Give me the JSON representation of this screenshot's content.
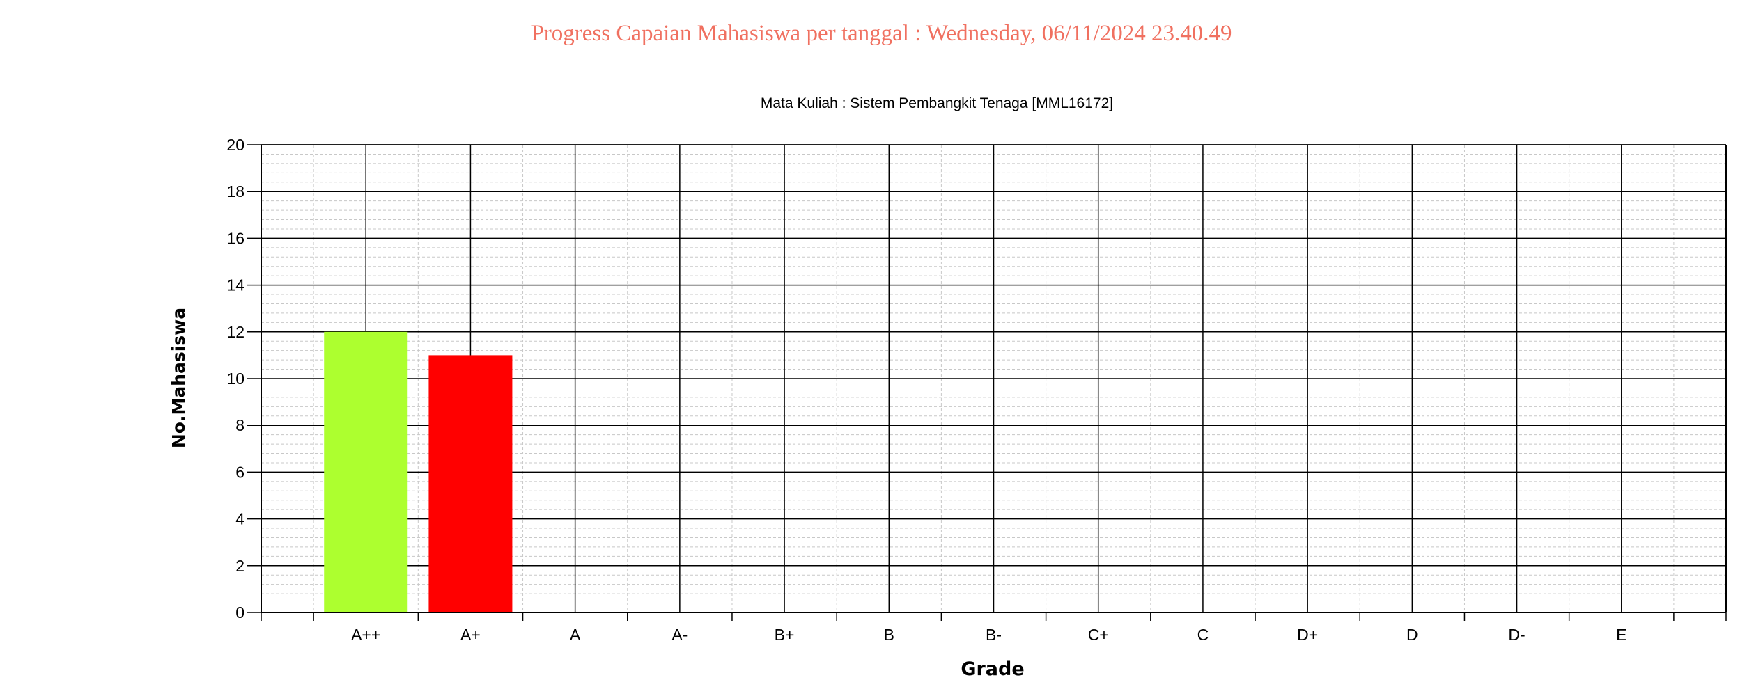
{
  "page": {
    "title": "Progress Capaian Mahasiswa per tanggal : Wednesday, 06/11/2024 23.40.49"
  },
  "chart_data": {
    "type": "bar",
    "title": "Mata Kuliah : Sistem Pembangkit Tenaga [MML16172]",
    "xlabel": "Grade",
    "ylabel": "No.Mahasiswa",
    "categories": [
      "A++",
      "A+",
      "A",
      "A-",
      "B+",
      "B",
      "B-",
      "C+",
      "C",
      "D+",
      "D",
      "D-",
      "E"
    ],
    "values": [
      12,
      11,
      0,
      0,
      0,
      0,
      0,
      0,
      0,
      0,
      0,
      0,
      0
    ],
    "bar_colors": [
      "#adff2f",
      "#ff0000",
      "#ffffff",
      "#ffffff",
      "#ffffff",
      "#ffffff",
      "#ffffff",
      "#ffffff",
      "#ffffff",
      "#ffffff",
      "#ffffff",
      "#ffffff",
      "#ffffff"
    ],
    "ylim": [
      0,
      20
    ],
    "yticks": [
      0,
      2,
      4,
      6,
      8,
      10,
      12,
      14,
      16,
      18,
      20
    ],
    "grid": true,
    "legend": "none"
  }
}
